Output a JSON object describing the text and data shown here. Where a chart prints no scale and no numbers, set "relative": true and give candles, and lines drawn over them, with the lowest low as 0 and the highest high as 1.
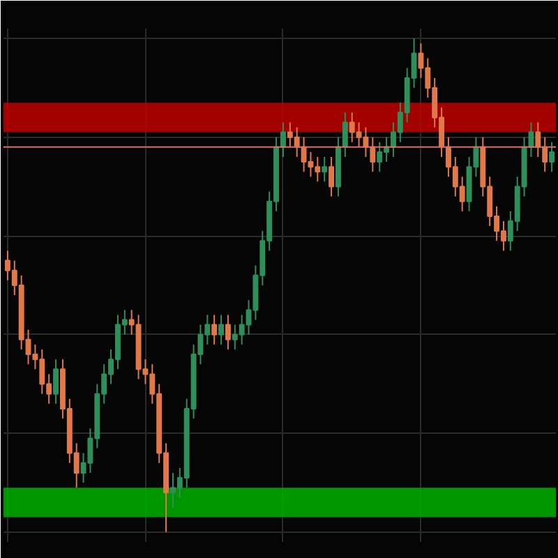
{
  "chart_data": {
    "type": "candlestick",
    "relative": true,
    "grid": true,
    "categories": [
      null,
      null,
      null,
      null,
      null,
      null,
      null,
      null,
      null,
      null,
      null,
      null,
      null,
      null,
      null,
      null,
      null,
      null,
      null,
      null,
      null,
      null,
      null,
      null,
      null,
      null,
      null,
      null,
      null,
      null,
      null,
      null,
      null,
      null,
      null,
      null,
      null,
      null,
      null,
      null,
      null,
      null,
      null,
      null,
      null,
      null,
      null,
      null,
      null,
      null,
      null,
      null,
      null,
      null,
      null,
      null,
      null,
      null,
      null,
      null,
      null,
      null,
      null,
      null,
      null,
      null,
      null,
      null,
      null,
      null,
      null,
      null,
      null,
      null,
      null,
      null,
      null,
      null,
      null,
      null
    ],
    "ohlc": [
      [
        0.55,
        0.57,
        0.51,
        0.53
      ],
      [
        0.53,
        0.55,
        0.48,
        0.5
      ],
      [
        0.5,
        0.52,
        0.37,
        0.39
      ],
      [
        0.39,
        0.41,
        0.34,
        0.36
      ],
      [
        0.36,
        0.38,
        0.33,
        0.35
      ],
      [
        0.35,
        0.37,
        0.28,
        0.3
      ],
      [
        0.3,
        0.32,
        0.26,
        0.28
      ],
      [
        0.28,
        0.35,
        0.26,
        0.33
      ],
      [
        0.33,
        0.35,
        0.23,
        0.25
      ],
      [
        0.25,
        0.27,
        0.14,
        0.16
      ],
      [
        0.16,
        0.18,
        0.09,
        0.12
      ],
      [
        0.12,
        0.16,
        0.1,
        0.14
      ],
      [
        0.14,
        0.21,
        0.12,
        0.19
      ],
      [
        0.19,
        0.3,
        0.17,
        0.28
      ],
      [
        0.28,
        0.34,
        0.26,
        0.32
      ],
      [
        0.32,
        0.37,
        0.3,
        0.35
      ],
      [
        0.35,
        0.44,
        0.33,
        0.42
      ],
      [
        0.42,
        0.45,
        0.4,
        0.43
      ],
      [
        0.43,
        0.45,
        0.4,
        0.42
      ],
      [
        0.42,
        0.44,
        0.31,
        0.33
      ],
      [
        0.33,
        0.35,
        0.3,
        0.32
      ],
      [
        0.32,
        0.34,
        0.26,
        0.28
      ],
      [
        0.28,
        0.3,
        0.14,
        0.16
      ],
      [
        0.16,
        0.18,
        0.0,
        0.08
      ],
      [
        0.08,
        0.12,
        0.05,
        0.09
      ],
      [
        0.09,
        0.13,
        0.07,
        0.11
      ],
      [
        0.11,
        0.27,
        0.09,
        0.25
      ],
      [
        0.25,
        0.38,
        0.23,
        0.36
      ],
      [
        0.36,
        0.42,
        0.34,
        0.4
      ],
      [
        0.4,
        0.44,
        0.38,
        0.42
      ],
      [
        0.42,
        0.44,
        0.38,
        0.4
      ],
      [
        0.4,
        0.44,
        0.38,
        0.42
      ],
      [
        0.42,
        0.44,
        0.37,
        0.39
      ],
      [
        0.39,
        0.42,
        0.37,
        0.4
      ],
      [
        0.4,
        0.44,
        0.38,
        0.42
      ],
      [
        0.42,
        0.47,
        0.4,
        0.45
      ],
      [
        0.45,
        0.54,
        0.43,
        0.52
      ],
      [
        0.52,
        0.61,
        0.5,
        0.59
      ],
      [
        0.59,
        0.69,
        0.57,
        0.67
      ],
      [
        0.67,
        0.8,
        0.65,
        0.78
      ],
      [
        0.78,
        0.83,
        0.76,
        0.81
      ],
      [
        0.81,
        0.83,
        0.78,
        0.8
      ],
      [
        0.8,
        0.82,
        0.76,
        0.78
      ],
      [
        0.78,
        0.8,
        0.73,
        0.75
      ],
      [
        0.75,
        0.77,
        0.72,
        0.74
      ],
      [
        0.74,
        0.76,
        0.71,
        0.73
      ],
      [
        0.73,
        0.76,
        0.71,
        0.74
      ],
      [
        0.74,
        0.76,
        0.68,
        0.7
      ],
      [
        0.7,
        0.8,
        0.68,
        0.78
      ],
      [
        0.78,
        0.85,
        0.76,
        0.83
      ],
      [
        0.83,
        0.85,
        0.79,
        0.81
      ],
      [
        0.81,
        0.83,
        0.78,
        0.8
      ],
      [
        0.8,
        0.82,
        0.76,
        0.78
      ],
      [
        0.78,
        0.8,
        0.73,
        0.75
      ],
      [
        0.75,
        0.79,
        0.73,
        0.77
      ],
      [
        0.77,
        0.8,
        0.75,
        0.78
      ],
      [
        0.78,
        0.83,
        0.76,
        0.81
      ],
      [
        0.81,
        0.87,
        0.79,
        0.85
      ],
      [
        0.85,
        0.94,
        0.83,
        0.92
      ],
      [
        0.92,
        1.0,
        0.9,
        0.97
      ],
      [
        0.97,
        0.99,
        0.92,
        0.94
      ],
      [
        0.94,
        0.96,
        0.88,
        0.9
      ],
      [
        0.9,
        0.92,
        0.82,
        0.84
      ],
      [
        0.84,
        0.86,
        0.76,
        0.78
      ],
      [
        0.78,
        0.8,
        0.72,
        0.74
      ],
      [
        0.74,
        0.76,
        0.68,
        0.7
      ],
      [
        0.7,
        0.72,
        0.65,
        0.67
      ],
      [
        0.67,
        0.76,
        0.65,
        0.74
      ],
      [
        0.74,
        0.8,
        0.72,
        0.78
      ],
      [
        0.78,
        0.8,
        0.68,
        0.7
      ],
      [
        0.7,
        0.72,
        0.62,
        0.64
      ],
      [
        0.64,
        0.66,
        0.59,
        0.61
      ],
      [
        0.61,
        0.63,
        0.57,
        0.59
      ],
      [
        0.59,
        0.65,
        0.57,
        0.63
      ],
      [
        0.63,
        0.72,
        0.61,
        0.7
      ],
      [
        0.7,
        0.8,
        0.68,
        0.78
      ],
      [
        0.78,
        0.83,
        0.76,
        0.81
      ],
      [
        0.81,
        0.83,
        0.76,
        0.78
      ],
      [
        0.78,
        0.8,
        0.73,
        0.75
      ],
      [
        0.75,
        0.79,
        0.73,
        0.77
      ]
    ],
    "ref_lines": [
      {
        "axis": "y",
        "value": 0.78,
        "color": "#e0705a"
      }
    ],
    "bands": [
      {
        "axis": "y",
        "from": 0.81,
        "to": 0.87,
        "color": "#c00000"
      },
      {
        "axis": "y",
        "from": 0.03,
        "to": 0.09,
        "color": "#00b000"
      }
    ]
  }
}
